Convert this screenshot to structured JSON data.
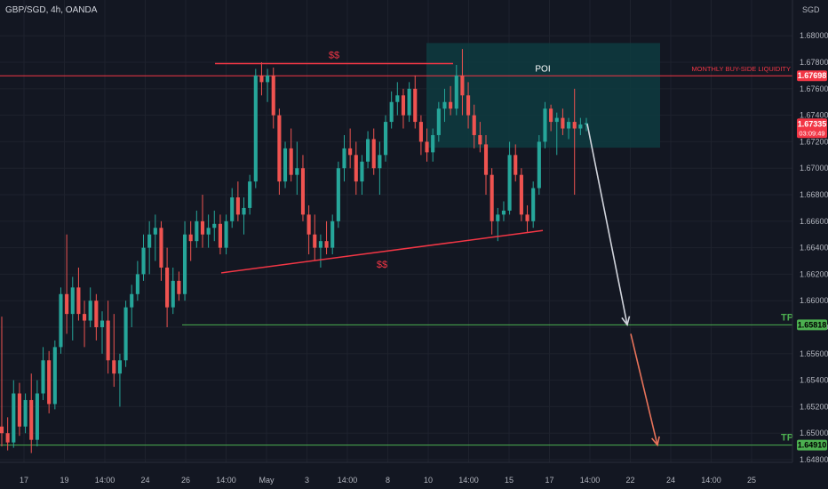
{
  "header": {
    "symbol": "GBP/SGD, 4h, OANDA"
  },
  "colors": {
    "background": "#131722",
    "grid": "#1e222d",
    "bull": "#26a69a",
    "bear": "#ef5350",
    "tp_line": "#4caf50",
    "liquidity_line": "#f23645",
    "poi_zone": "#0e3b3f",
    "arrow_white": "#d1d4dc",
    "arrow_red": "#e8735a"
  },
  "chart_data": {
    "type": "candlestick",
    "currency_label": "SGD",
    "ylim": [
      1.6478,
      1.6827
    ],
    "y_ticks": [
      "1.68000",
      "1.67800",
      "1.67600",
      "1.67400",
      "1.67200",
      "1.67000",
      "1.66800",
      "1.66600",
      "1.66400",
      "1.66200",
      "1.66000",
      "1.65800",
      "1.65600",
      "1.65400",
      "1.65200",
      "1.65000",
      "1.64800"
    ],
    "x_ticks": [
      "17",
      "19",
      "14:00",
      "24",
      "26",
      "14:00",
      "May",
      "3",
      "14:00",
      "8",
      "10",
      "14:00",
      "15",
      "17",
      "14:00",
      "22",
      "24",
      "14:00",
      "25"
    ],
    "price_tags": [
      {
        "label": "1.67698",
        "value": 1.67698,
        "color": "#f23645",
        "text_color": "#ffffff"
      },
      {
        "label": "1.67335",
        "sublabel": "03:09:49",
        "value": 1.67335,
        "color": "#f23645",
        "text_color": "#ffffff"
      },
      {
        "label": "1.65818",
        "value": 1.65818,
        "color": "#4caf50",
        "text_color": "#000000"
      },
      {
        "label": "1.64910",
        "value": 1.6491,
        "color": "#4caf50",
        "text_color": "#000000"
      }
    ],
    "annotations": {
      "liquidity_label": "MONTHLY BUY-SIDE LIQUIDITY",
      "poi_label": "POI",
      "top_liquidity_label": "$$",
      "bottom_liquidity_label": "$$",
      "tp1_label": "TP",
      "tp2_label": "TP",
      "liquidity_level": 1.67698,
      "tp1_level": 1.65818,
      "tp2_level": 1.6491,
      "poi_zone": {
        "low": 1.67155,
        "high": 1.67945
      },
      "top_line_level": 1.6779,
      "bottom_line": {
        "start": 1.6621,
        "end": 1.6653
      }
    },
    "candles": [
      [
        1.6505,
        1.6588,
        1.649,
        1.65
      ],
      [
        1.65,
        1.6512,
        1.6487,
        1.6493
      ],
      [
        1.6493,
        1.654,
        1.6489,
        1.653
      ],
      [
        1.653,
        1.6538,
        1.6498,
        1.6505
      ],
      [
        1.6505,
        1.653,
        1.65,
        1.6525
      ],
      [
        1.6525,
        1.6545,
        1.6485,
        1.6495
      ],
      [
        1.6495,
        1.654,
        1.649,
        1.653
      ],
      [
        1.653,
        1.6565,
        1.6525,
        1.6555
      ],
      [
        1.6555,
        1.6562,
        1.6515,
        1.6522
      ],
      [
        1.6522,
        1.657,
        1.6518,
        1.6565
      ],
      [
        1.6565,
        1.661,
        1.656,
        1.6605
      ],
      [
        1.6605,
        1.665,
        1.6575,
        1.659
      ],
      [
        1.659,
        1.6618,
        1.657,
        1.661
      ],
      [
        1.661,
        1.6625,
        1.6585,
        1.659
      ],
      [
        1.659,
        1.66,
        1.6565,
        1.6585
      ],
      [
        1.6585,
        1.661,
        1.658,
        1.66
      ],
      [
        1.66,
        1.6605,
        1.657,
        1.658
      ],
      [
        1.658,
        1.6592,
        1.656,
        1.6585
      ],
      [
        1.6585,
        1.66,
        1.6545,
        1.6555
      ],
      [
        1.6555,
        1.659,
        1.6535,
        1.6545
      ],
      [
        1.6545,
        1.656,
        1.652,
        1.6555
      ],
      [
        1.6555,
        1.66,
        1.655,
        1.6595
      ],
      [
        1.6595,
        1.6612,
        1.658,
        1.6605
      ],
      [
        1.6605,
        1.663,
        1.66,
        1.662
      ],
      [
        1.662,
        1.665,
        1.6615,
        1.664
      ],
      [
        1.664,
        1.666,
        1.662,
        1.665
      ],
      [
        1.665,
        1.6665,
        1.663,
        1.6655
      ],
      [
        1.6655,
        1.666,
        1.6615,
        1.6625
      ],
      [
        1.6625,
        1.664,
        1.658,
        1.6595
      ],
      [
        1.6595,
        1.6625,
        1.659,
        1.6615
      ],
      [
        1.6615,
        1.6622,
        1.66,
        1.6605
      ],
      [
        1.6605,
        1.666,
        1.66,
        1.665
      ],
      [
        1.665,
        1.666,
        1.663,
        1.6645
      ],
      [
        1.6645,
        1.6668,
        1.664,
        1.666
      ],
      [
        1.666,
        1.668,
        1.664,
        1.665
      ],
      [
        1.665,
        1.6665,
        1.664,
        1.6655
      ],
      [
        1.6655,
        1.6668,
        1.6645,
        1.6658
      ],
      [
        1.6658,
        1.6665,
        1.6635,
        1.664
      ],
      [
        1.664,
        1.6665,
        1.6635,
        1.666
      ],
      [
        1.666,
        1.6685,
        1.6655,
        1.6678
      ],
      [
        1.6678,
        1.669,
        1.666,
        1.6665
      ],
      [
        1.6665,
        1.6678,
        1.665,
        1.667
      ],
      [
        1.667,
        1.6695,
        1.6665,
        1.669
      ],
      [
        1.669,
        1.6775,
        1.6685,
        1.677
      ],
      [
        1.677,
        1.678,
        1.6755,
        1.6765
      ],
      [
        1.6765,
        1.6775,
        1.675,
        1.677
      ],
      [
        1.677,
        1.6776,
        1.673,
        1.674
      ],
      [
        1.674,
        1.6745,
        1.668,
        1.669
      ],
      [
        1.669,
        1.672,
        1.6685,
        1.6715
      ],
      [
        1.6715,
        1.673,
        1.669,
        1.6695
      ],
      [
        1.6695,
        1.672,
        1.668,
        1.67
      ],
      [
        1.67,
        1.671,
        1.666,
        1.6665
      ],
      [
        1.6665,
        1.6672,
        1.6635,
        1.665
      ],
      [
        1.665,
        1.6665,
        1.663,
        1.664
      ],
      [
        1.664,
        1.665,
        1.6625,
        1.6645
      ],
      [
        1.6645,
        1.666,
        1.6635,
        1.664
      ],
      [
        1.664,
        1.6665,
        1.6635,
        1.666
      ],
      [
        1.666,
        1.6705,
        1.6655,
        1.67
      ],
      [
        1.67,
        1.6725,
        1.669,
        1.6715
      ],
      [
        1.6715,
        1.673,
        1.67,
        1.671
      ],
      [
        1.671,
        1.672,
        1.668,
        1.669
      ],
      [
        1.669,
        1.671,
        1.668,
        1.6705
      ],
      [
        1.6705,
        1.6728,
        1.67,
        1.6722
      ],
      [
        1.6722,
        1.673,
        1.6695,
        1.67
      ],
      [
        1.67,
        1.672,
        1.668,
        1.671
      ],
      [
        1.671,
        1.674,
        1.6705,
        1.6735
      ],
      [
        1.6735,
        1.6758,
        1.673,
        1.675
      ],
      [
        1.675,
        1.6765,
        1.674,
        1.6755
      ],
      [
        1.6755,
        1.676,
        1.673,
        1.674
      ],
      [
        1.674,
        1.6765,
        1.6735,
        1.676
      ],
      [
        1.676,
        1.677,
        1.673,
        1.6735
      ],
      [
        1.6735,
        1.674,
        1.671,
        1.672
      ],
      [
        1.672,
        1.673,
        1.6705,
        1.6712
      ],
      [
        1.6712,
        1.673,
        1.6705,
        1.6725
      ],
      [
        1.6725,
        1.675,
        1.672,
        1.6745
      ],
      [
        1.6745,
        1.676,
        1.6735,
        1.675
      ],
      [
        1.675,
        1.6762,
        1.674,
        1.6745
      ],
      [
        1.6745,
        1.6778,
        1.674,
        1.677
      ],
      [
        1.677,
        1.679,
        1.674,
        1.6755
      ],
      [
        1.6755,
        1.6765,
        1.673,
        1.674
      ],
      [
        1.674,
        1.6748,
        1.6715,
        1.6725
      ],
      [
        1.6725,
        1.6735,
        1.6712,
        1.6718
      ],
      [
        1.6718,
        1.6725,
        1.668,
        1.6695
      ],
      [
        1.6695,
        1.67,
        1.665,
        1.666
      ],
      [
        1.666,
        1.667,
        1.6645,
        1.6665
      ],
      [
        1.6665,
        1.6675,
        1.666,
        1.6668
      ],
      [
        1.6668,
        1.672,
        1.6665,
        1.671
      ],
      [
        1.671,
        1.6718,
        1.669,
        1.6695
      ],
      [
        1.6695,
        1.67,
        1.666,
        1.6665
      ],
      [
        1.6665,
        1.6672,
        1.6652,
        1.666
      ],
      [
        1.666,
        1.669,
        1.6655,
        1.6685
      ],
      [
        1.6685,
        1.6725,
        1.668,
        1.672
      ],
      [
        1.672,
        1.675,
        1.6715,
        1.6745
      ],
      [
        1.6745,
        1.6748,
        1.6728,
        1.6735
      ],
      [
        1.6735,
        1.6742,
        1.671,
        1.6738
      ],
      [
        1.6738,
        1.6745,
        1.6725,
        1.673
      ],
      [
        1.673,
        1.6738,
        1.6722,
        1.6735
      ],
      [
        1.6735,
        1.676,
        1.668,
        1.673
      ],
      [
        1.673,
        1.6738,
        1.6725,
        1.6733
      ],
      [
        1.6733,
        1.6738,
        1.6728,
        1.6734
      ]
    ]
  }
}
